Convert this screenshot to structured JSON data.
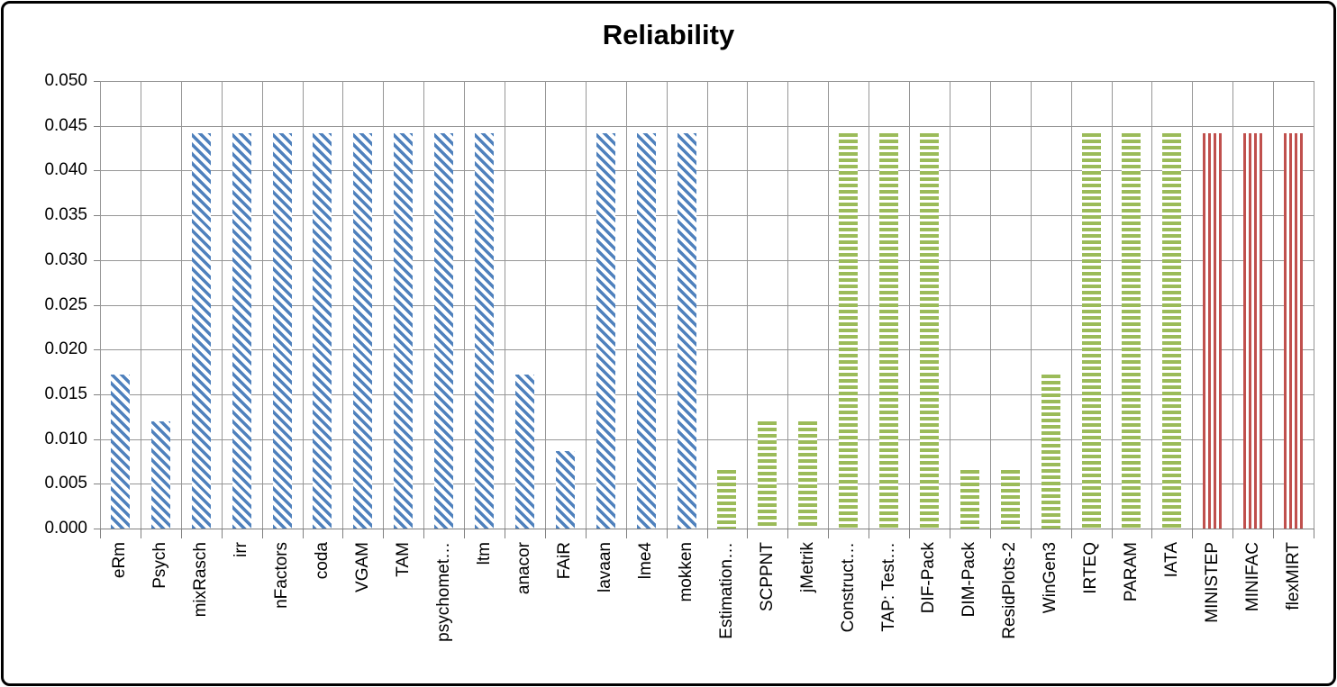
{
  "chart_data": {
    "type": "bar",
    "title": "Reliability",
    "xlabel": "",
    "ylabel": "",
    "ylim": [
      0,
      0.05
    ],
    "ytick_step": 0.005,
    "ytick_decimals": 3,
    "grid": "both",
    "legend": "none",
    "categories": [
      "eRm",
      "Psych",
      "mixRasch",
      "irr",
      "nFactors",
      "coda",
      "VGAM",
      "TAM",
      "psychomet…",
      "ltm",
      "anacor",
      "FAiR",
      "lavaan",
      "lme4",
      "mokken",
      "Estimation…",
      "SCPPNT",
      "jMetrik",
      "Construct…",
      "TAP: Test…",
      "DIF-Pack",
      "DIM-Pack",
      "ResidPlots-2",
      "WinGen3",
      "IRTEQ",
      "PARAM",
      "IATA",
      "MINISTEP",
      "MINIFAC",
      "flexMIRT"
    ],
    "values": [
      0.0172,
      0.012,
      0.0442,
      0.0442,
      0.0442,
      0.0442,
      0.0442,
      0.0442,
      0.0442,
      0.0442,
      0.0172,
      0.0087,
      0.0442,
      0.0442,
      0.0442,
      0.0065,
      0.012,
      0.012,
      0.0442,
      0.0442,
      0.0442,
      0.0065,
      0.0065,
      0.0172,
      0.0442,
      0.0442,
      0.0442,
      0.0442,
      0.0442,
      0.0442
    ],
    "bar_groups": [
      "blue",
      "blue",
      "blue",
      "blue",
      "blue",
      "blue",
      "blue",
      "blue",
      "blue",
      "blue",
      "blue",
      "blue",
      "blue",
      "blue",
      "blue",
      "green",
      "green",
      "green",
      "green",
      "green",
      "green",
      "green",
      "green",
      "green",
      "green",
      "green",
      "green",
      "red",
      "red",
      "red"
    ],
    "group_styles": {
      "blue": {
        "color": "#4f81bd",
        "hatch": "diagonal-down"
      },
      "green": {
        "color": "#9bbb59",
        "hatch": "horizontal"
      },
      "red": {
        "color": "#c0504d",
        "hatch": "vertical"
      }
    },
    "gridline_color": "#969696",
    "axis_color": "#808080",
    "text_color": "#000000",
    "background_color": "#ffffff",
    "border_color": "#000000"
  }
}
